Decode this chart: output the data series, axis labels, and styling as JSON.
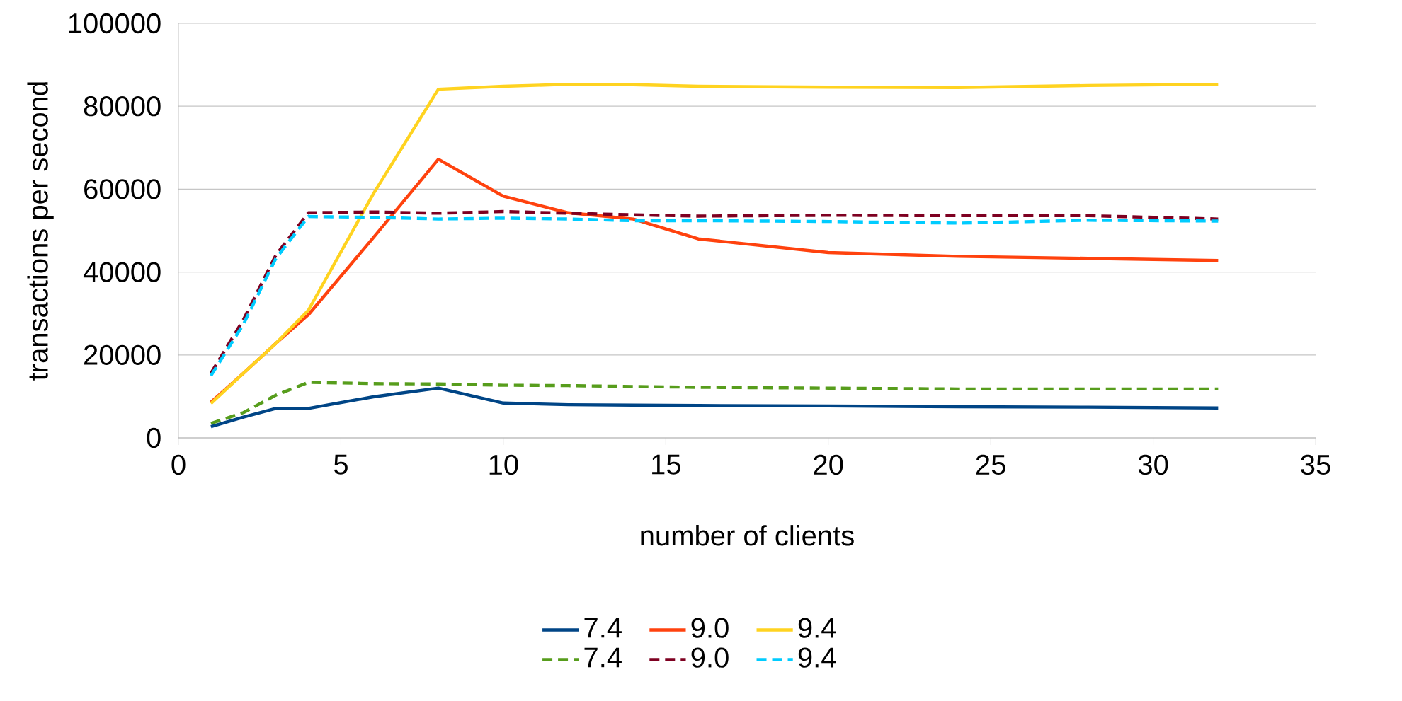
{
  "chart_data": {
    "type": "line",
    "xlabel": "number of clients",
    "ylabel": "transactions per second",
    "xlim": [
      0,
      35
    ],
    "xticks": [
      0,
      5,
      10,
      15,
      20,
      25,
      30,
      35
    ],
    "ylim": [
      0,
      100000
    ],
    "yticks": [
      0,
      20000,
      40000,
      60000,
      80000,
      100000
    ],
    "grid": "y",
    "legend": "bottom",
    "x": [
      1,
      2,
      3,
      4,
      6,
      8,
      10,
      12,
      14,
      16,
      20,
      24,
      28,
      32
    ],
    "series": [
      {
        "name": "7.4",
        "color": "#004586",
        "line_style": "solid",
        "values": [
          2700,
          5000,
          7100,
          7100,
          9900,
          12000,
          8400,
          8000,
          7900,
          7800,
          7700,
          7500,
          7400,
          7200
        ]
      },
      {
        "name": "9.0",
        "color": "#ff420e",
        "line_style": "solid",
        "values": [
          8600,
          15600,
          22800,
          29700,
          48300,
          67200,
          58300,
          54300,
          52800,
          48000,
          44700,
          43800,
          43300,
          42800
        ]
      },
      {
        "name": "9.4",
        "color": "#ffd320",
        "line_style": "solid",
        "values": [
          8300,
          15600,
          22800,
          30800,
          58900,
          84100,
          84800,
          85300,
          85200,
          84800,
          84600,
          84500,
          85000,
          85300
        ]
      },
      {
        "name": "7.4",
        "color": "#579d1c",
        "line_style": "dashed",
        "values": [
          3500,
          6100,
          10300,
          13400,
          13100,
          13000,
          12700,
          12600,
          12400,
          12200,
          12000,
          11800,
          11800,
          11800
        ]
      },
      {
        "name": "9.0",
        "color": "#7e0021",
        "line_style": "dashed",
        "values": [
          15600,
          28500,
          44100,
          54300,
          54500,
          54200,
          54600,
          54200,
          53800,
          53500,
          53700,
          53600,
          53600,
          52800
        ]
      },
      {
        "name": "9.4",
        "color": "#00ccff",
        "line_style": "dashed",
        "values": [
          15000,
          27400,
          43300,
          53400,
          53200,
          52800,
          53000,
          52800,
          52400,
          52400,
          52200,
          51800,
          52500,
          52300
        ]
      }
    ]
  }
}
